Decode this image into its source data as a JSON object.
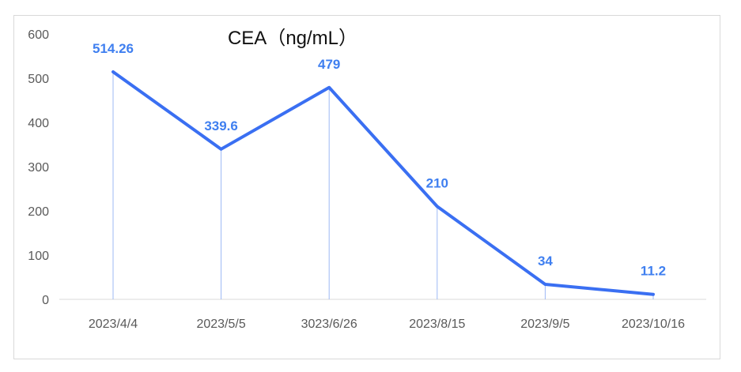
{
  "chart_data": {
    "type": "line",
    "title": "CEA（ng/mL）",
    "xlabel": "",
    "ylabel": "",
    "ylim": [
      0,
      600
    ],
    "yticks": [
      0,
      100,
      200,
      300,
      400,
      500,
      600
    ],
    "categories": [
      "2023/4/4",
      "2023/5/5",
      "3023/6/26",
      "2023/8/15",
      "2023/9/5",
      "2023/10/16"
    ],
    "series": [
      {
        "values": [
          514.26,
          339.6,
          479,
          210,
          34,
          11.2
        ]
      }
    ],
    "data_labels": [
      "514.26",
      "339.6",
      "479",
      "210",
      "34",
      "11.2"
    ],
    "grid": false,
    "line_color": "#3a6ff2",
    "label_color": "#3f7ff0"
  }
}
